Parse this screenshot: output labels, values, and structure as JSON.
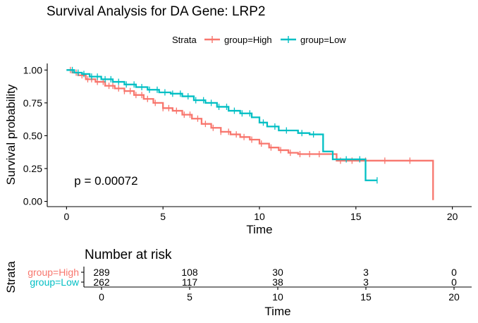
{
  "chart_data": [
    {
      "type": "line",
      "subtype": "kaplan-meier",
      "title": "Survival Analysis for DA Gene: LRP2",
      "xlabel": "Time",
      "ylabel": "Survival probability",
      "xlim": [
        -1,
        21
      ],
      "ylim": [
        -0.04,
        1.05
      ],
      "xticks": [
        0,
        5,
        10,
        15,
        20
      ],
      "yticks": [
        0,
        0.25,
        0.5,
        0.75,
        1
      ],
      "ytick_labels": [
        "0.00",
        "0.25",
        "0.50",
        "0.75",
        "1.00"
      ],
      "grid": false,
      "legend": {
        "title": "Strata",
        "position": "top"
      },
      "annotation": "p = 0.00072",
      "annotation_pos": {
        "x": 0.4,
        "y": 0.16
      },
      "series": [
        {
          "name": "group=High",
          "color": "#F8766D",
          "x": [
            0,
            0.3,
            0.6,
            1.0,
            1.5,
            2.0,
            2.5,
            3.0,
            3.5,
            4.0,
            4.5,
            5.0,
            5.5,
            6.0,
            6.5,
            7.0,
            7.5,
            8.0,
            8.5,
            9.0,
            9.5,
            10.0,
            10.5,
            11.0,
            11.5,
            12.0,
            13.0,
            13.8,
            14.0,
            15.0,
            16.0,
            17.0,
            18.0,
            19.0,
            19.0
          ],
          "y": [
            1.0,
            0.98,
            0.96,
            0.93,
            0.91,
            0.88,
            0.86,
            0.84,
            0.81,
            0.78,
            0.75,
            0.71,
            0.69,
            0.66,
            0.63,
            0.59,
            0.56,
            0.53,
            0.51,
            0.49,
            0.47,
            0.44,
            0.41,
            0.39,
            0.37,
            0.36,
            0.36,
            0.36,
            0.31,
            0.31,
            0.31,
            0.31,
            0.31,
            0.31,
            0.01
          ],
          "censor_x": [
            0.2,
            0.5,
            0.8,
            1.1,
            1.3,
            1.6,
            1.9,
            2.2,
            2.4,
            2.7,
            3.0,
            3.3,
            3.6,
            3.9,
            4.2,
            4.6,
            5.0,
            5.3,
            5.7,
            6.1,
            6.4,
            6.8,
            7.2,
            7.6,
            8.0,
            8.4,
            8.8,
            9.2,
            9.6,
            10.1,
            10.6,
            11.1,
            11.6,
            12.1,
            12.6,
            13.1,
            14.2,
            14.8,
            15.5,
            16.5,
            17.8
          ],
          "risk_table": [
            289,
            108,
            30,
            3,
            0
          ]
        },
        {
          "name": "group=Low",
          "color": "#00BFC4",
          "x": [
            0,
            0.4,
            0.8,
            1.2,
            1.8,
            2.4,
            3.0,
            3.6,
            4.2,
            4.8,
            5.4,
            6.0,
            6.6,
            7.2,
            7.8,
            8.4,
            9.0,
            9.6,
            10.0,
            10.4,
            11.0,
            12.0,
            12.6,
            13.0,
            13.3,
            13.8,
            14.0,
            15.0,
            15.5,
            16.1
          ],
          "y": [
            1.0,
            0.98,
            0.97,
            0.95,
            0.93,
            0.91,
            0.89,
            0.87,
            0.85,
            0.83,
            0.82,
            0.8,
            0.77,
            0.75,
            0.72,
            0.69,
            0.67,
            0.64,
            0.6,
            0.57,
            0.54,
            0.52,
            0.51,
            0.51,
            0.38,
            0.32,
            0.32,
            0.32,
            0.16,
            0.16
          ],
          "censor_x": [
            0.3,
            0.6,
            0.9,
            1.3,
            1.6,
            2.0,
            2.3,
            2.7,
            3.1,
            3.5,
            3.9,
            4.3,
            4.7,
            5.1,
            5.5,
            5.9,
            6.3,
            6.7,
            7.1,
            7.5,
            7.9,
            8.3,
            8.7,
            9.1,
            9.5,
            10.2,
            10.8,
            11.4,
            12.2,
            12.8,
            14.5,
            15.2,
            16.1
          ],
          "risk_table": [
            262,
            117,
            38,
            3,
            0
          ]
        }
      ]
    },
    {
      "type": "table",
      "title": "Number at risk",
      "xlabel": "Time",
      "ylabel": "Strata",
      "xlim": [
        -1,
        21
      ],
      "xticks": [
        0,
        5,
        10,
        15,
        20
      ],
      "columns_at_time": [
        0,
        5,
        10,
        15,
        20
      ],
      "rows": [
        {
          "label": "group=High",
          "color": "#F8766D",
          "values": [
            289,
            108,
            30,
            3,
            0
          ]
        },
        {
          "label": "group=Low",
          "color": "#00BFC4",
          "values": [
            262,
            117,
            38,
            3,
            0
          ]
        }
      ]
    }
  ]
}
